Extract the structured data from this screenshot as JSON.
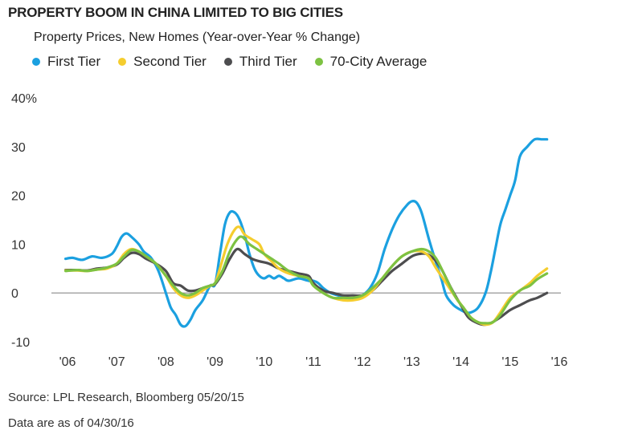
{
  "title": "PROPERTY BOOM IN CHINA LIMITED TO BIG CITIES",
  "subtitle": "Property Prices, New Homes (Year-over-Year % Change)",
  "footnotes": {
    "source": "Source: LPL Research, Bloomberg   05/20/15",
    "asof": "Data are as of 04/30/16"
  },
  "chart_data": {
    "type": "line",
    "title": "PROPERTY BOOM IN CHINA LIMITED TO BIG CITIES",
    "subtitle": "Property Prices, New Homes (Year-over-Year % Change)",
    "xlabel": "",
    "ylabel": "",
    "x_tick_labels": [
      "'06",
      "'07",
      "'08",
      "'09",
      "'10",
      "'11",
      "'12",
      "'13",
      "'14",
      "'15",
      "'16"
    ],
    "y_tick_labels": [
      "40%",
      "30",
      "20",
      "10",
      "0",
      "-10"
    ],
    "y_tick_values": [
      40,
      30,
      20,
      10,
      0,
      -10
    ],
    "ylim": [
      -10,
      40
    ],
    "xlim": [
      2006,
      2016.3
    ],
    "grid": false,
    "zero_line": true,
    "legend_position": "top-left",
    "series": [
      {
        "name": "First Tier",
        "color": "#1ba0e0",
        "x": [
          2005.96,
          2006.1,
          2006.3,
          2006.5,
          2006.7,
          2006.9,
          2007.0,
          2007.1,
          2007.2,
          2007.3,
          2007.45,
          2007.55,
          2007.7,
          2007.85,
          2008.0,
          2008.1,
          2008.2,
          2008.3,
          2008.4,
          2008.5,
          2008.6,
          2008.75,
          2008.9,
          2009.0,
          2009.1,
          2009.2,
          2009.3,
          2009.4,
          2009.5,
          2009.6,
          2009.7,
          2009.8,
          2009.9,
          2010.0,
          2010.1,
          2010.2,
          2010.3,
          2010.4,
          2010.5,
          2010.7,
          2010.9,
          2011.0,
          2011.1,
          2011.2,
          2011.35,
          2011.5,
          2011.7,
          2011.9,
          2012.0,
          2012.15,
          2012.3,
          2012.45,
          2012.6,
          2012.75,
          2012.9,
          2013.0,
          2013.1,
          2013.2,
          2013.35,
          2013.5,
          2013.6,
          2013.7,
          2013.85,
          2014.0,
          2014.1,
          2014.2,
          2014.35,
          2014.5,
          2014.6,
          2014.7,
          2014.8,
          2014.9,
          2015.0,
          2015.1,
          2015.2,
          2015.35,
          2015.5,
          2015.65,
          2015.75
        ],
        "y": [
          7.0,
          7.2,
          6.8,
          7.5,
          7.2,
          8.0,
          9.5,
          11.5,
          12.2,
          11.5,
          10.0,
          8.5,
          7.2,
          4.5,
          0.0,
          -3.0,
          -4.5,
          -6.5,
          -6.8,
          -5.5,
          -3.5,
          -1.5,
          1.5,
          1.8,
          8.0,
          14.0,
          16.5,
          16.5,
          15.0,
          12.0,
          8.0,
          5.0,
          3.5,
          3.0,
          3.5,
          3.0,
          3.5,
          3.0,
          2.5,
          3.0,
          2.5,
          2.5,
          2.0,
          1.0,
          0.0,
          -0.5,
          -1.0,
          -1.0,
          -0.5,
          1.0,
          4.0,
          9.0,
          13.0,
          16.0,
          18.0,
          18.8,
          18.5,
          16.5,
          11.0,
          6.0,
          3.0,
          -0.5,
          -2.5,
          -3.5,
          -4.0,
          -4.0,
          -3.0,
          0.0,
          4.0,
          9.0,
          14.0,
          17.0,
          20.0,
          23.0,
          28.0,
          30.0,
          31.5,
          31.5,
          31.5
        ]
      },
      {
        "name": "Second Tier",
        "color": "#f5cd2e",
        "x": [
          2005.96,
          2006.2,
          2006.4,
          2006.6,
          2006.8,
          2007.0,
          2007.15,
          2007.3,
          2007.45,
          2007.6,
          2007.8,
          2008.0,
          2008.15,
          2008.3,
          2008.45,
          2008.6,
          2008.75,
          2008.9,
          2009.0,
          2009.1,
          2009.25,
          2009.4,
          2009.5,
          2009.6,
          2009.75,
          2009.9,
          2010.0,
          2010.15,
          2010.3,
          2010.5,
          2010.7,
          2010.9,
          2011.0,
          2011.2,
          2011.4,
          2011.6,
          2011.8,
          2012.0,
          2012.2,
          2012.4,
          2012.6,
          2012.8,
          2013.0,
          2013.2,
          2013.35,
          2013.5,
          2013.7,
          2013.9,
          2014.05,
          2014.2,
          2014.35,
          2014.5,
          2014.65,
          2014.8,
          2015.0,
          2015.2,
          2015.4,
          2015.55,
          2015.75
        ],
        "y": [
          4.6,
          4.6,
          4.5,
          4.8,
          5.0,
          6.0,
          8.0,
          9.0,
          8.5,
          7.5,
          6.0,
          3.5,
          1.0,
          -0.5,
          -1.0,
          -0.5,
          0.5,
          1.5,
          2.0,
          5.0,
          10.0,
          13.0,
          13.5,
          12.0,
          11.0,
          10.0,
          8.0,
          6.5,
          5.0,
          4.0,
          3.5,
          3.0,
          1.5,
          0.0,
          -1.0,
          -1.5,
          -1.5,
          -1.0,
          0.5,
          3.0,
          5.5,
          7.5,
          8.5,
          8.5,
          7.5,
          5.0,
          2.0,
          -1.0,
          -3.0,
          -5.0,
          -6.0,
          -6.5,
          -6.0,
          -4.0,
          -1.0,
          0.5,
          2.0,
          3.5,
          5.0
        ]
      },
      {
        "name": "Third Tier",
        "color": "#4d4d4f",
        "x": [
          2005.96,
          2006.2,
          2006.4,
          2006.6,
          2006.8,
          2007.0,
          2007.15,
          2007.3,
          2007.45,
          2007.6,
          2007.8,
          2008.0,
          2008.15,
          2008.3,
          2008.45,
          2008.6,
          2008.75,
          2008.9,
          2009.0,
          2009.15,
          2009.3,
          2009.45,
          2009.6,
          2009.75,
          2009.9,
          2010.1,
          2010.3,
          2010.5,
          2010.7,
          2010.9,
          2011.0,
          2011.2,
          2011.4,
          2011.6,
          2011.8,
          2012.0,
          2012.2,
          2012.4,
          2012.6,
          2012.8,
          2013.0,
          2013.15,
          2013.3,
          2013.45,
          2013.6,
          2013.8,
          2014.0,
          2014.15,
          2014.3,
          2014.45,
          2014.6,
          2014.8,
          2015.0,
          2015.2,
          2015.4,
          2015.55,
          2015.75
        ],
        "y": [
          4.7,
          4.7,
          4.6,
          5.0,
          5.2,
          5.8,
          7.2,
          8.2,
          8.0,
          7.0,
          6.0,
          4.5,
          2.0,
          1.5,
          0.5,
          0.5,
          1.0,
          1.5,
          1.8,
          4.0,
          7.0,
          9.0,
          8.0,
          7.0,
          6.5,
          6.0,
          5.0,
          4.5,
          4.0,
          3.5,
          2.0,
          0.5,
          0.0,
          -0.5,
          -0.5,
          -0.5,
          0.5,
          2.5,
          4.5,
          6.0,
          7.5,
          8.0,
          8.0,
          7.0,
          5.0,
          1.0,
          -2.5,
          -5.0,
          -6.0,
          -6.5,
          -6.2,
          -5.0,
          -3.5,
          -2.5,
          -1.5,
          -1.0,
          0.0
        ]
      },
      {
        "name": "70-City Average",
        "color": "#7dc242",
        "x": [
          2005.96,
          2006.2,
          2006.4,
          2006.6,
          2006.8,
          2007.0,
          2007.15,
          2007.3,
          2007.45,
          2007.6,
          2007.8,
          2008.0,
          2008.15,
          2008.3,
          2008.45,
          2008.6,
          2008.75,
          2008.9,
          2009.0,
          2009.15,
          2009.3,
          2009.45,
          2009.55,
          2009.7,
          2009.85,
          2010.0,
          2010.15,
          2010.3,
          2010.5,
          2010.7,
          2010.9,
          2011.0,
          2011.2,
          2011.4,
          2011.6,
          2011.8,
          2012.0,
          2012.2,
          2012.4,
          2012.6,
          2012.8,
          2013.0,
          2013.2,
          2013.35,
          2013.5,
          2013.7,
          2013.9,
          2014.05,
          2014.2,
          2014.35,
          2014.5,
          2014.65,
          2014.8,
          2015.0,
          2015.2,
          2015.4,
          2015.55,
          2015.75
        ],
        "y": [
          4.5,
          4.7,
          4.5,
          4.8,
          5.2,
          6.0,
          7.5,
          8.8,
          8.5,
          7.5,
          6.0,
          3.5,
          1.5,
          0.0,
          -0.5,
          0.0,
          1.0,
          1.5,
          2.0,
          4.5,
          8.5,
          11.0,
          11.5,
          10.0,
          9.0,
          8.0,
          7.0,
          6.0,
          4.5,
          3.5,
          3.0,
          1.5,
          0.0,
          -1.0,
          -1.0,
          -1.0,
          -0.5,
          1.0,
          3.0,
          5.5,
          7.5,
          8.5,
          9.0,
          8.5,
          7.0,
          3.0,
          -1.0,
          -3.0,
          -5.0,
          -6.0,
          -6.2,
          -6.0,
          -4.5,
          -1.5,
          0.5,
          1.5,
          2.8,
          4.0
        ]
      }
    ]
  }
}
